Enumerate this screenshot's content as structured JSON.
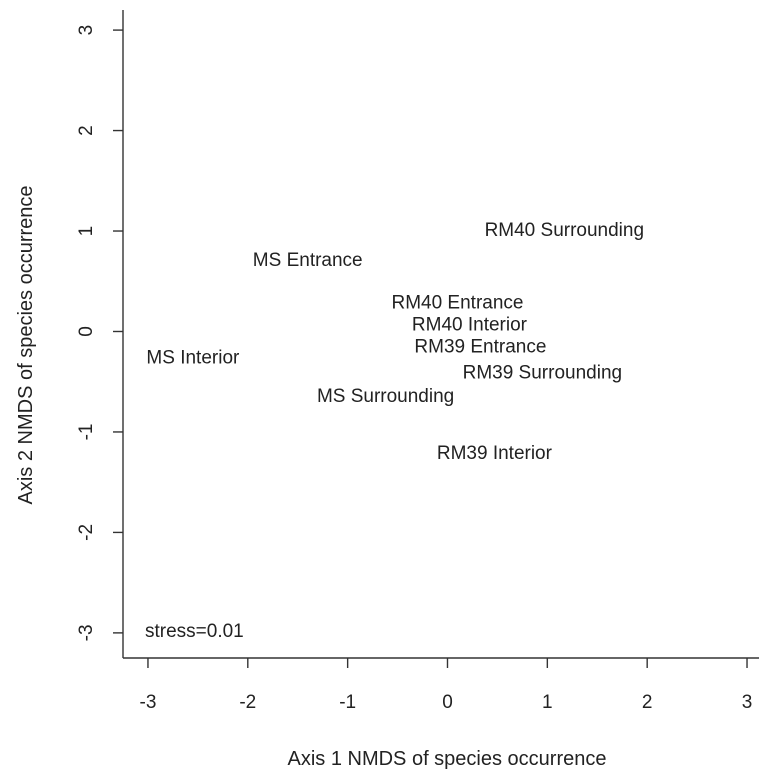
{
  "chart_data": {
    "type": "scatter",
    "title": "",
    "xlabel": "Axis 1 NMDS of species occurrence",
    "ylabel": "Axis 2 NMDS of species occurrence",
    "xlim": [
      -3.25,
      3.15
    ],
    "ylim": [
      -3.25,
      3.2
    ],
    "xticks": [
      -3,
      -2,
      -1,
      0,
      1,
      2,
      3
    ],
    "yticks": [
      -3,
      -2,
      -1,
      0,
      1,
      2,
      3
    ],
    "grid": false,
    "points": [
      {
        "label": "RM40 Surrounding",
        "x": 1.17,
        "y": 1.02
      },
      {
        "label": "MS Entrance",
        "x": -1.4,
        "y": 0.72
      },
      {
        "label": "RM40 Entrance",
        "x": 0.1,
        "y": 0.3
      },
      {
        "label": "RM40 Interior",
        "x": 0.22,
        "y": 0.08
      },
      {
        "label": "RM39 Entrance",
        "x": 0.33,
        "y": -0.14
      },
      {
        "label": "MS Interior",
        "x": -2.55,
        "y": -0.25
      },
      {
        "label": "RM39 Surrounding",
        "x": 0.95,
        "y": -0.4
      },
      {
        "label": "MS Surrounding",
        "x": -0.62,
        "y": -0.63
      },
      {
        "label": "RM39 Interior",
        "x": 0.47,
        "y": -1.2
      }
    ],
    "annotation": "stress=0.01"
  }
}
